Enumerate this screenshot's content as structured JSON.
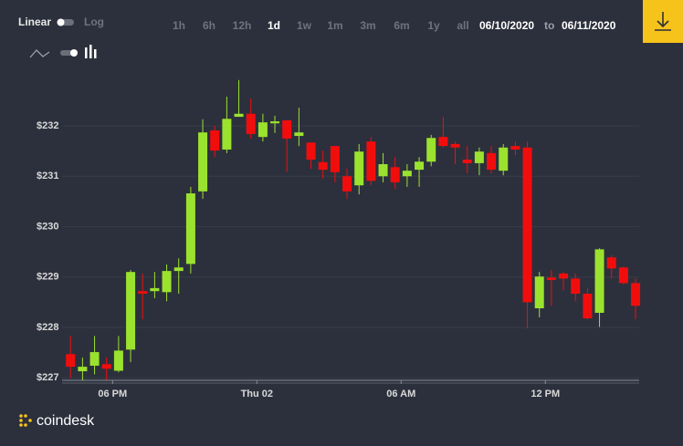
{
  "controls": {
    "scale_options": [
      "Linear",
      "Log"
    ],
    "active_scale": "Linear",
    "ranges": [
      "1h",
      "6h",
      "12h",
      "1d",
      "1w",
      "1m",
      "3m",
      "6m",
      "1y",
      "all"
    ],
    "active_range": "1d",
    "date_from": "06/10/2020",
    "date_separator": "to",
    "date_to": "06/11/2020"
  },
  "brand": "coindesk",
  "chart_data": {
    "type": "candlestick",
    "up_color": "#9be22f",
    "down_color": "#f20d0d",
    "grid": true,
    "xlim": [
      -8.1,
      15.9
    ],
    "xticks": [
      {
        "value": -6,
        "label": "06 PM"
      },
      {
        "value": 0,
        "label": "Thu 02"
      },
      {
        "value": 6,
        "label": "06 AM"
      },
      {
        "value": 12,
        "label": "12 PM"
      }
    ],
    "ylim": [
      226.95,
      233.05
    ],
    "yticks": [
      {
        "value": 227,
        "label": "$227"
      },
      {
        "value": 228,
        "label": "$228"
      },
      {
        "value": 229,
        "label": "$229"
      },
      {
        "value": 230,
        "label": "$230"
      },
      {
        "value": 231,
        "label": "$231"
      },
      {
        "value": 232,
        "label": "$232"
      }
    ],
    "x": [
      -7.75,
      -7.25,
      -6.75,
      -6.25,
      -5.75,
      -5.25,
      -4.75,
      -4.25,
      -3.75,
      -3.25,
      -2.75,
      -2.25,
      -1.75,
      -1.25,
      -0.75,
      -0.25,
      0.25,
      0.75,
      1.25,
      1.75,
      2.25,
      2.75,
      3.25,
      3.75,
      4.25,
      4.75,
      5.25,
      5.75,
      6.25,
      6.75,
      7.25,
      7.75,
      8.25,
      8.75,
      9.25,
      9.75,
      10.25,
      10.75,
      11.25,
      11.75,
      12.25,
      12.75,
      13.25,
      13.75,
      14.25,
      14.75,
      15.25,
      15.75
    ],
    "open": [
      227.47,
      227.13,
      227.24,
      227.27,
      227.14,
      227.56,
      228.72,
      228.72,
      228.7,
      229.12,
      229.26,
      230.7,
      231.91,
      231.53,
      232.18,
      232.24,
      231.78,
      232.05,
      232.11,
      231.8,
      231.67,
      231.28,
      231.6,
      231.0,
      230.82,
      231.69,
      231.0,
      231.18,
      231.0,
      231.13,
      231.29,
      231.78,
      231.64,
      231.33,
      231.26,
      231.46,
      231.11,
      231.6,
      231.57,
      228.38,
      228.99,
      229.07,
      228.97,
      228.67,
      228.29,
      229.39,
      229.19,
      228.88
    ],
    "high": [
      227.83,
      227.4,
      227.83,
      227.4,
      227.83,
      229.14,
      229.07,
      229.1,
      229.25,
      229.37,
      230.79,
      232.13,
      232.0,
      232.58,
      232.91,
      232.54,
      232.24,
      232.2,
      232.11,
      232.36,
      231.67,
      231.51,
      231.6,
      231.15,
      231.64,
      231.78,
      231.46,
      231.38,
      231.24,
      231.38,
      231.82,
      232.18,
      231.69,
      231.6,
      231.57,
      231.6,
      231.64,
      231.69,
      231.69,
      229.1,
      229.14,
      229.1,
      229.07,
      228.79,
      229.57,
      229.43,
      229.21,
      228.97
    ],
    "low": [
      227.0,
      226.95,
      227.07,
      226.96,
      227.11,
      227.31,
      228.16,
      228.58,
      228.52,
      228.67,
      229.07,
      230.55,
      231.38,
      231.46,
      232.18,
      231.75,
      231.69,
      231.86,
      231.09,
      231.6,
      231.15,
      230.95,
      230.88,
      230.55,
      230.64,
      230.82,
      230.88,
      230.75,
      230.79,
      230.79,
      231.2,
      231.57,
      231.24,
      231.06,
      231.02,
      231.06,
      231.02,
      231.42,
      227.98,
      228.2,
      228.43,
      228.74,
      228.52,
      228.16,
      228.01,
      228.97,
      228.85,
      228.16
    ],
    "close": [
      227.22,
      227.22,
      227.51,
      227.18,
      227.54,
      229.1,
      228.67,
      228.78,
      229.12,
      229.19,
      230.66,
      231.87,
      231.51,
      232.14,
      232.24,
      231.84,
      232.07,
      232.09,
      231.75,
      231.87,
      231.33,
      231.13,
      231.08,
      230.7,
      231.49,
      230.91,
      231.24,
      230.88,
      231.11,
      231.29,
      231.76,
      231.6,
      231.57,
      231.26,
      231.49,
      231.13,
      231.57,
      231.53,
      228.5,
      229.01,
      228.94,
      228.97,
      228.67,
      228.18,
      229.55,
      229.17,
      228.88,
      228.43
    ]
  }
}
